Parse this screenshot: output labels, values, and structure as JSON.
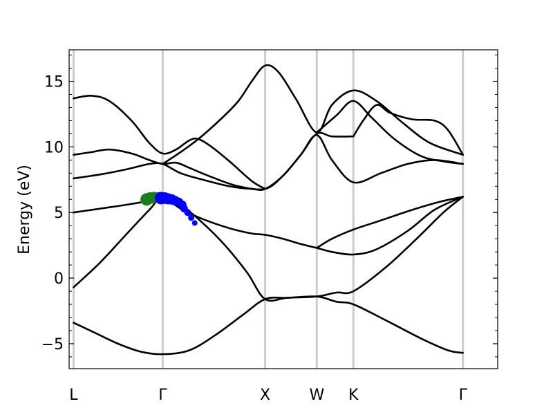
{
  "chart_data": {
    "type": "line",
    "ylabel": "Energy (eV)",
    "xlabel": "",
    "ylim": [
      -6.9,
      17.4
    ],
    "xlim": [
      -0.05,
      4.76
    ],
    "yticks": [
      -5,
      0,
      5,
      10,
      15
    ],
    "ytick_labels": [
      "−5",
      "0",
      "5",
      "10",
      "15"
    ],
    "x_kpoints": [
      {
        "label": "L",
        "x": 0.0
      },
      {
        "label": "Γ",
        "x": 1.0
      },
      {
        "label": "X",
        "x": 2.15
      },
      {
        "label": "W",
        "x": 2.73
      },
      {
        "label": "K",
        "x": 3.14
      },
      {
        "label": "Γ",
        "x": 4.37
      }
    ],
    "colors": {
      "bands": "#000000",
      "kpath_lines": "#cccccc",
      "projection_a": "#1a7f1a",
      "projection_b": "#0000ff"
    },
    "series": [
      {
        "values": [
          [
            0,
            -3.4
          ],
          [
            0.25,
            -4.2
          ],
          [
            0.5,
            -5.0
          ],
          [
            0.75,
            -5.6
          ],
          [
            1.0,
            -5.8
          ],
          [
            1.3,
            -5.5
          ],
          [
            1.6,
            -4.3
          ],
          [
            1.9,
            -2.8
          ],
          [
            2.15,
            -1.6
          ],
          [
            2.4,
            -1.5
          ],
          [
            2.73,
            -1.4
          ],
          [
            2.95,
            -1.8
          ],
          [
            3.14,
            -2.0
          ],
          [
            3.5,
            -3.2
          ],
          [
            3.9,
            -4.6
          ],
          [
            4.2,
            -5.5
          ],
          [
            4.37,
            -5.7
          ]
        ]
      },
      {
        "values": [
          [
            0,
            -0.7
          ],
          [
            0.3,
            1.2
          ],
          [
            0.6,
            3.4
          ],
          [
            0.85,
            5.2
          ],
          [
            1.0,
            6.2
          ],
          [
            1.2,
            5.6
          ],
          [
            1.45,
            4.2
          ],
          [
            1.7,
            2.5
          ],
          [
            1.95,
            0.4
          ],
          [
            2.15,
            -1.6
          ],
          [
            2.4,
            -1.5
          ],
          [
            2.73,
            -1.4
          ],
          [
            2.95,
            -1.1
          ],
          [
            3.14,
            -1.0
          ],
          [
            3.5,
            0.8
          ],
          [
            3.85,
            3.0
          ],
          [
            4.15,
            5.0
          ],
          [
            4.37,
            6.2
          ]
        ]
      },
      {
        "values": [
          [
            0,
            5.0
          ],
          [
            0.3,
            5.3
          ],
          [
            0.6,
            5.6
          ],
          [
            0.85,
            5.9
          ],
          [
            1.0,
            6.2
          ],
          [
            1.2,
            5.3
          ],
          [
            1.45,
            4.5
          ],
          [
            1.75,
            3.8
          ],
          [
            2.0,
            3.4
          ],
          [
            2.15,
            3.3
          ],
          [
            2.35,
            3.0
          ],
          [
            2.55,
            2.6
          ],
          [
            2.73,
            2.3
          ],
          [
            2.9,
            2.0
          ],
          [
            3.14,
            1.8
          ],
          [
            3.4,
            2.2
          ],
          [
            3.75,
            3.6
          ],
          [
            4.05,
            5.2
          ],
          [
            4.37,
            6.2
          ]
        ]
      },
      {
        "values": [
          [
            0,
            7.6
          ],
          [
            0.3,
            7.9
          ],
          [
            0.6,
            8.3
          ],
          [
            0.85,
            8.7
          ],
          [
            1.0,
            8.7
          ],
          [
            1.2,
            8.0
          ],
          [
            1.45,
            7.5
          ],
          [
            1.75,
            7.0
          ],
          [
            2.0,
            6.8
          ],
          [
            2.15,
            6.8
          ],
          [
            2.35,
            7.8
          ],
          [
            2.55,
            9.4
          ],
          [
            2.73,
            11.0
          ],
          [
            2.9,
            10.8
          ],
          [
            3.14,
            10.8
          ]
        ]
      },
      {
        "values": [
          [
            2.73,
            2.3
          ],
          [
            2.9,
            3.0
          ],
          [
            3.14,
            3.7
          ],
          [
            3.45,
            4.4
          ],
          [
            3.8,
            5.2
          ],
          [
            4.1,
            5.8
          ],
          [
            4.37,
            6.2
          ]
        ]
      },
      {
        "values": [
          [
            0,
            9.4
          ],
          [
            0.2,
            9.6
          ],
          [
            0.4,
            9.8
          ],
          [
            0.65,
            9.5
          ],
          [
            0.85,
            9.0
          ],
          [
            1.0,
            8.7
          ],
          [
            1.15,
            8.8
          ],
          [
            1.3,
            8.4
          ],
          [
            1.55,
            7.7
          ],
          [
            1.85,
            7.0
          ],
          [
            2.15,
            6.8
          ],
          [
            2.35,
            7.8
          ],
          [
            2.55,
            9.4
          ],
          [
            2.73,
            10.9
          ],
          [
            2.9,
            9.0
          ],
          [
            3.14,
            7.3
          ],
          [
            3.45,
            8.0
          ],
          [
            3.75,
            8.7
          ],
          [
            4.05,
            9.0
          ],
          [
            4.37,
            8.7
          ]
        ]
      },
      {
        "values": [
          [
            0,
            13.7
          ],
          [
            0.2,
            13.9
          ],
          [
            0.4,
            13.5
          ],
          [
            0.65,
            12.0
          ],
          [
            0.85,
            10.3
          ],
          [
            1.0,
            9.5
          ],
          [
            1.15,
            9.8
          ],
          [
            1.3,
            10.5
          ],
          [
            1.4,
            10.6
          ],
          [
            1.55,
            10.0
          ],
          [
            1.75,
            8.9
          ],
          [
            2.0,
            7.4
          ],
          [
            2.15,
            6.8
          ]
        ]
      },
      {
        "values": [
          [
            1.0,
            8.7
          ],
          [
            1.2,
            9.6
          ],
          [
            1.4,
            10.6
          ],
          [
            1.65,
            12.1
          ],
          [
            1.85,
            13.5
          ],
          [
            2.0,
            15.0
          ],
          [
            2.15,
            16.2
          ],
          [
            2.3,
            15.7
          ],
          [
            2.5,
            13.6
          ],
          [
            2.73,
            11.1
          ],
          [
            2.9,
            13.2
          ],
          [
            3.14,
            14.3
          ],
          [
            3.4,
            13.5
          ],
          [
            3.7,
            11.8
          ],
          [
            4.0,
            10.3
          ],
          [
            4.37,
            9.4
          ]
        ]
      },
      {
        "values": [
          [
            2.73,
            11.1
          ],
          [
            2.95,
            12.4
          ],
          [
            3.14,
            13.5
          ],
          [
            3.35,
            12.2
          ],
          [
            3.6,
            10.6
          ],
          [
            3.9,
            9.3
          ],
          [
            4.15,
            8.9
          ],
          [
            4.37,
            8.7
          ]
        ]
      },
      {
        "values": [
          [
            3.14,
            10.8
          ],
          [
            3.25,
            12.0
          ],
          [
            3.4,
            13.2
          ],
          [
            3.55,
            12.6
          ],
          [
            3.8,
            12.1
          ],
          [
            4.05,
            12.0
          ],
          [
            4.2,
            11.3
          ],
          [
            4.37,
            9.4
          ]
        ]
      }
    ],
    "projections": [
      {
        "color_key": "projection_a",
        "points": [
          [
            0.82,
            6.0
          ],
          [
            0.86,
            6.1
          ],
          [
            0.9,
            6.15
          ],
          [
            0.95,
            6.15
          ]
        ]
      },
      {
        "color_key": "projection_b",
        "points": [
          [
            0.98,
            6.1
          ],
          [
            1.02,
            6.1
          ],
          [
            1.06,
            6.05
          ],
          [
            1.1,
            6.0
          ],
          [
            1.14,
            5.9
          ],
          [
            1.18,
            5.8
          ],
          [
            1.22,
            5.6
          ],
          [
            1.24,
            5.3
          ],
          [
            1.28,
            5.0
          ],
          [
            1.32,
            4.6
          ],
          [
            1.36,
            4.2
          ]
        ]
      }
    ]
  }
}
